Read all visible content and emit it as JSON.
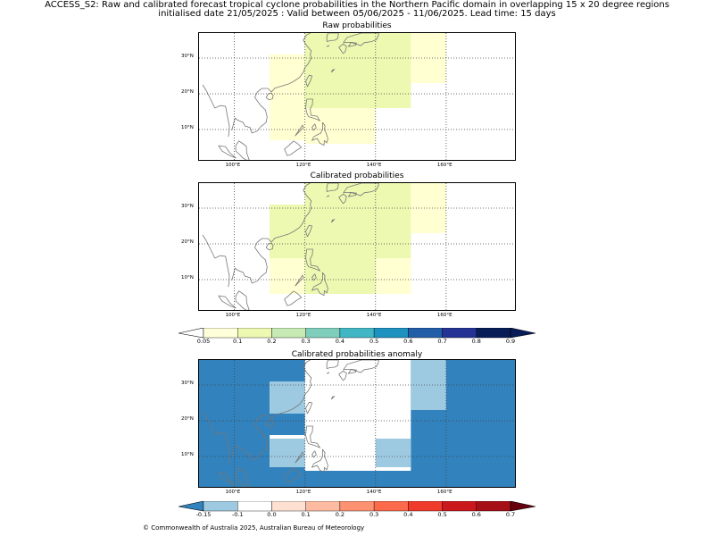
{
  "header": {
    "line1": "ACCESS_S2: Raw and calibrated forecast tropical cyclone probabilities in the Northern Pacific domain in overlapping 15 x 20 degree regions",
    "line2": "initialised date 21/05/2025 :  Valid between 05/06/2025 - 11/06/2025. Lead time: 15 days"
  },
  "axes": {
    "lon_labels": [
      "100°E",
      "120°E",
      "140°E",
      "160°E"
    ],
    "lat_labels": [
      "30°N",
      "20°N",
      "10°N"
    ]
  },
  "colors": {
    "grid": "#444444",
    "coast": "#777777"
  },
  "chart_data": [
    {
      "type": "heatmap",
      "title": "Raw probabilities",
      "xlim_lon": [
        90,
        180
      ],
      "ylim_lat": [
        1,
        37
      ],
      "cells": [
        {
          "lon": [
            110,
            120
          ],
          "lat": [
            7,
            31
          ],
          "color": "#ffffd2"
        },
        {
          "lon": [
            120,
            150
          ],
          "lat": [
            16,
            37
          ],
          "color": "#edf8b1"
        },
        {
          "lon": [
            120,
            140
          ],
          "lat": [
            6,
            16
          ],
          "color": "#ffffd2"
        },
        {
          "lon": [
            150,
            160
          ],
          "lat": [
            23,
            37
          ],
          "color": "#ffffd2"
        }
      ]
    },
    {
      "type": "heatmap",
      "title": "Calibrated probabilities",
      "xlim_lon": [
        90,
        180
      ],
      "ylim_lat": [
        1,
        37
      ],
      "cells": [
        {
          "lon": [
            110,
            120
          ],
          "lat": [
            6,
            16
          ],
          "color": "#ffffd2"
        },
        {
          "lon": [
            110,
            150
          ],
          "lat": [
            16,
            31
          ],
          "color": "#edf8b1"
        },
        {
          "lon": [
            120,
            150
          ],
          "lat": [
            31,
            37
          ],
          "color": "#edf8b1"
        },
        {
          "lon": [
            120,
            140
          ],
          "lat": [
            6,
            16
          ],
          "color": "#edf8b1"
        },
        {
          "lon": [
            140,
            150
          ],
          "lat": [
            6,
            16
          ],
          "color": "#ffffd2"
        },
        {
          "lon": [
            150,
            160
          ],
          "lat": [
            23,
            37
          ],
          "color": "#ffffd2"
        }
      ]
    },
    {
      "type": "heatmap",
      "title": "Calibrated probabilities anomaly",
      "xlim_lon": [
        90,
        180
      ],
      "ylim_lat": [
        1,
        37
      ],
      "background": "#3182bd",
      "cells": [
        {
          "lon": [
            120,
            150
          ],
          "lat": [
            6,
            37
          ],
          "color": "#ffffff"
        },
        {
          "lon": [
            110,
            120
          ],
          "lat": [
            7,
            16
          ],
          "color": "#ffffff"
        },
        {
          "lon": [
            110,
            120
          ],
          "lat": [
            22,
            31
          ],
          "color": "#ffffff"
        },
        {
          "lon": [
            110,
            120
          ],
          "lat": [
            7,
            15
          ],
          "color": "#9ecae1"
        },
        {
          "lon": [
            110,
            120
          ],
          "lat": [
            22,
            31
          ],
          "color": "#9ecae1"
        },
        {
          "lon": [
            140,
            150
          ],
          "lat": [
            7,
            15
          ],
          "color": "#9ecae1"
        },
        {
          "lon": [
            150,
            160
          ],
          "lat": [
            23,
            37
          ],
          "color": "#9ecae1"
        }
      ]
    }
  ],
  "colorbars": [
    {
      "labels": [
        "0.05",
        "0.1",
        "0.2",
        "0.3",
        "0.4",
        "0.5",
        "0.6",
        "0.7",
        "0.8",
        "0.9"
      ],
      "under": "#ffffff",
      "over": "#081d58",
      "colors": [
        "#ffffd9",
        "#edf8b1",
        "#c7e9b4",
        "#7fcdbb",
        "#41b6c4",
        "#1d91c0",
        "#225ea8",
        "#253494",
        "#081d58"
      ]
    },
    {
      "labels": [
        "-0.15",
        "-0.1",
        "0.0",
        "0.1",
        "0.2",
        "0.3",
        "0.4",
        "0.5",
        "0.6",
        "0.7"
      ],
      "under": "#3182bd",
      "over": "#67000d",
      "colors": [
        "#9ecae1",
        "#ffffff",
        "#fee0d2",
        "#fcbba1",
        "#fc9272",
        "#fb6a4a",
        "#ef3b2c",
        "#cb181d",
        "#a50f15"
      ]
    }
  ],
  "footer": {
    "copyright": "© Commonwealth of Australia 2025, Australian Bureau of Meteorology"
  }
}
